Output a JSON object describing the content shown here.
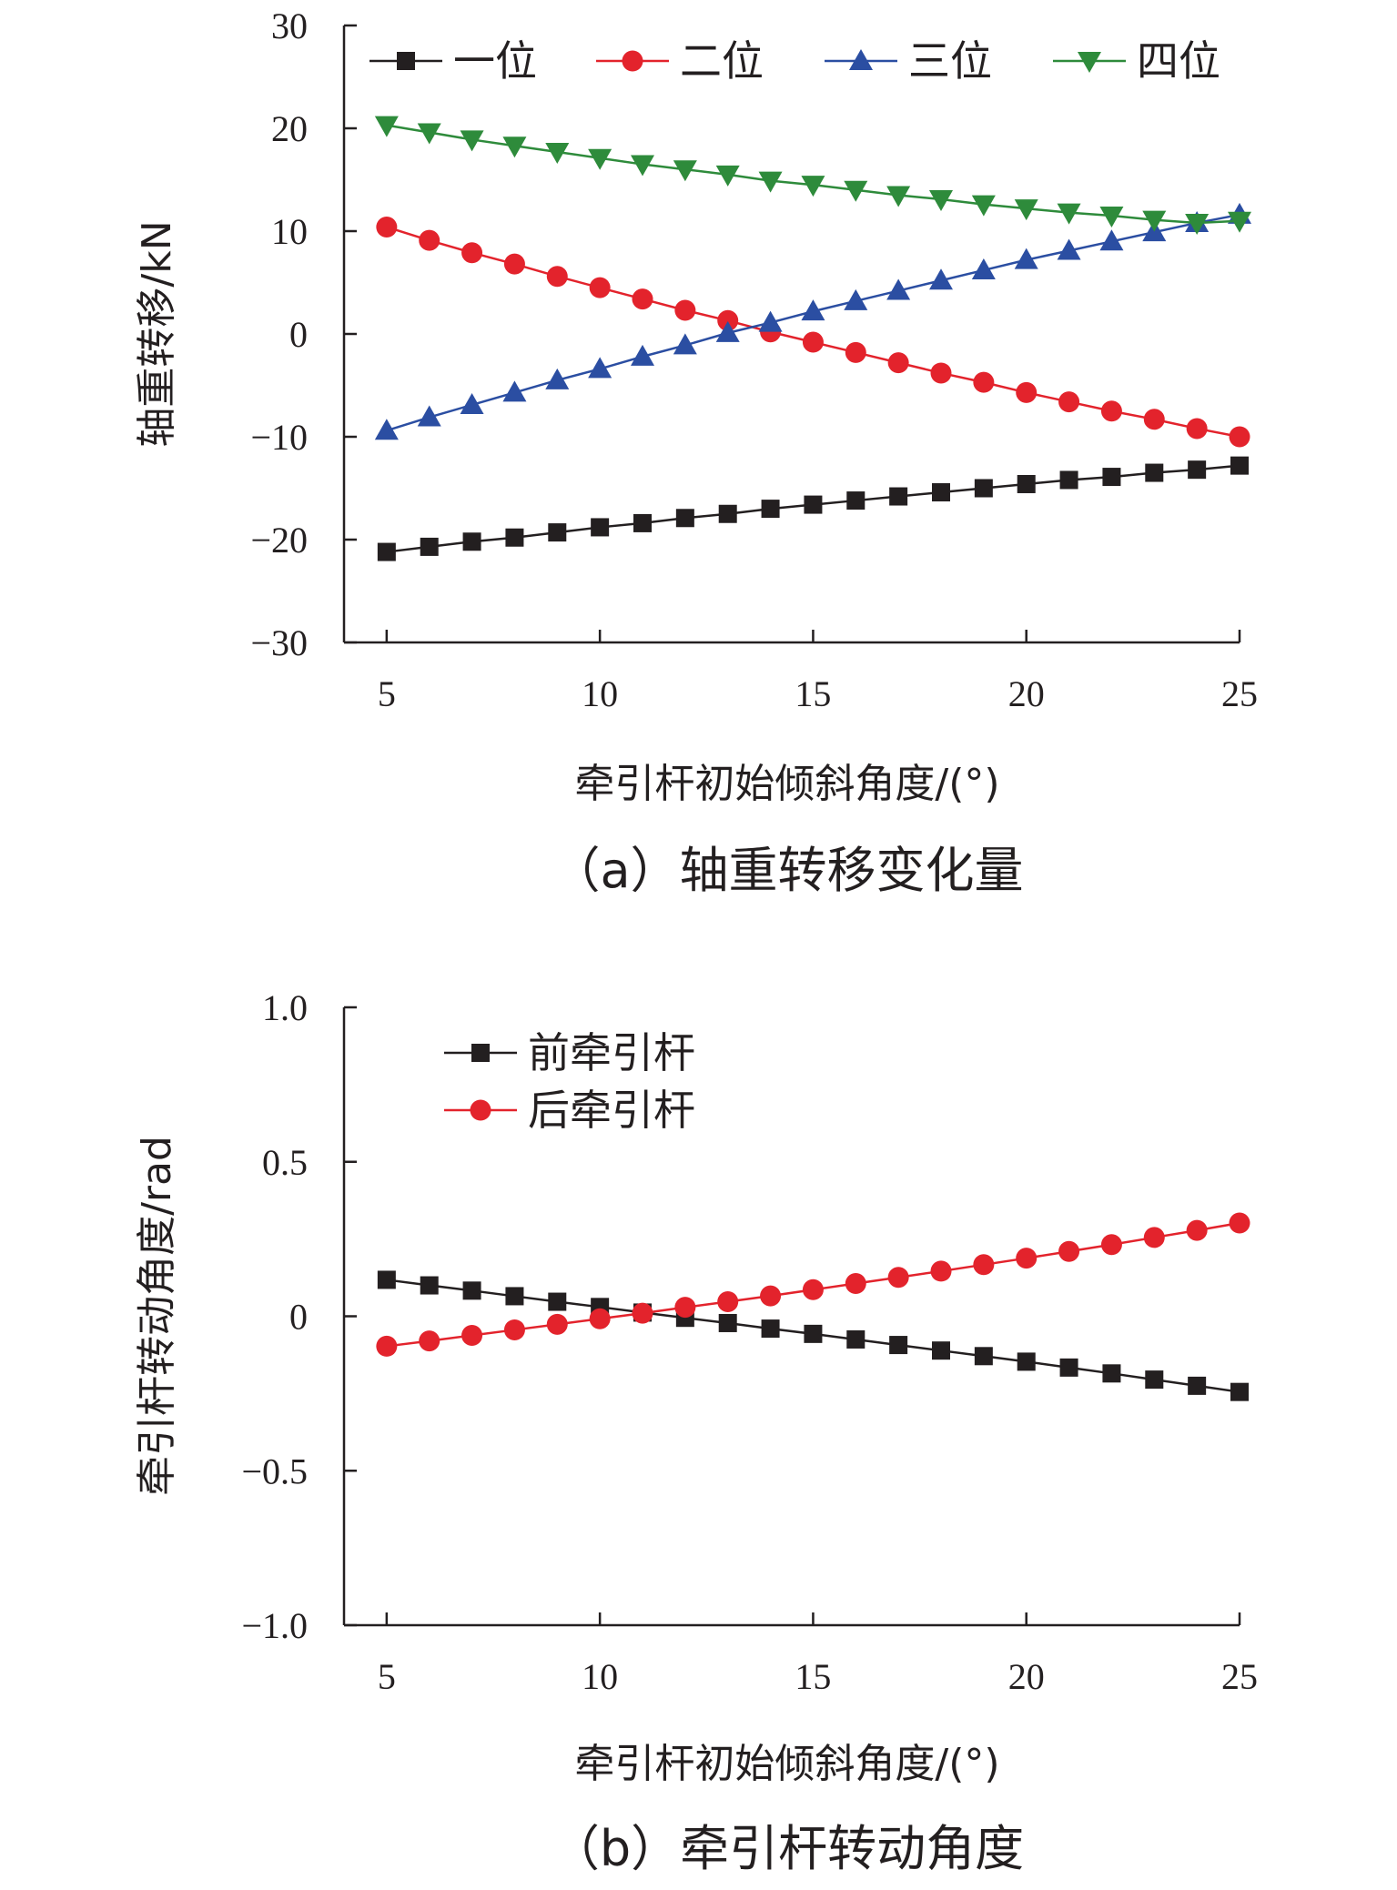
{
  "chart_data": [
    {
      "type": "line",
      "caption": "（a）轴重转移变化量",
      "xlabel": "牵引杆初始倾斜角度/(°)",
      "ylabel": "轴重转移/kN",
      "xlim": [
        4,
        25
      ],
      "ylim": [
        -30,
        30
      ],
      "xticks": [
        5,
        10,
        15,
        20,
        25
      ],
      "xtick_labels": [
        "5",
        "10",
        "15",
        "20",
        "25"
      ],
      "yticks": [
        30,
        20,
        10,
        0,
        -10,
        -20,
        -30
      ],
      "ytick_labels": [
        "30",
        "20",
        "10",
        "0",
        "−10",
        "−20",
        "−30"
      ],
      "legend_position": "top",
      "x": [
        5,
        6,
        7,
        8,
        9,
        10,
        11,
        12,
        13,
        14,
        15,
        16,
        17,
        18,
        19,
        20,
        21,
        22,
        23,
        24,
        25
      ],
      "series": [
        {
          "name": "一位",
          "color": "#231f20",
          "marker": "square",
          "values": [
            -21.2,
            -20.7,
            -20.2,
            -19.8,
            -19.3,
            -18.8,
            -18.4,
            -17.9,
            -17.5,
            -17.0,
            -16.6,
            -16.2,
            -15.8,
            -15.4,
            -15.0,
            -14.6,
            -14.2,
            -13.9,
            -13.5,
            -13.2,
            -12.8
          ]
        },
        {
          "name": "二位",
          "color": "#e3232c",
          "marker": "circle",
          "values": [
            10.4,
            9.1,
            7.9,
            6.8,
            5.6,
            4.5,
            3.4,
            2.3,
            1.3,
            0.2,
            -0.8,
            -1.8,
            -2.8,
            -3.8,
            -4.7,
            -5.7,
            -6.6,
            -7.5,
            -8.3,
            -9.2,
            -10.0
          ]
        },
        {
          "name": "三位",
          "color": "#2b4ea2",
          "marker": "triangle-up",
          "values": [
            -9.4,
            -8.1,
            -6.9,
            -5.7,
            -4.5,
            -3.4,
            -2.2,
            -1.1,
            0.1,
            1.1,
            2.2,
            3.2,
            4.2,
            5.2,
            6.2,
            7.2,
            8.1,
            9.0,
            9.9,
            10.8,
            11.6
          ]
        },
        {
          "name": "四位",
          "color": "#2e8b3b",
          "marker": "triangle-down",
          "values": [
            20.3,
            19.6,
            18.9,
            18.3,
            17.7,
            17.1,
            16.5,
            16.0,
            15.5,
            14.9,
            14.5,
            14.0,
            13.5,
            13.1,
            12.6,
            12.2,
            11.8,
            11.5,
            11.1,
            10.8,
            11.0
          ]
        }
      ]
    },
    {
      "type": "line",
      "caption": "（b）牵引杆转动角度",
      "xlabel": "牵引杆初始倾斜角度/(°)",
      "ylabel": "牵引杆转动角度/rad",
      "xlim": [
        4,
        25
      ],
      "ylim": [
        -1.0,
        1.0
      ],
      "xticks": [
        5,
        10,
        15,
        20,
        25
      ],
      "xtick_labels": [
        "5",
        "10",
        "15",
        "20",
        "25"
      ],
      "yticks": [
        1.0,
        0.5,
        0,
        -0.5,
        -1.0
      ],
      "ytick_labels": [
        "1.0",
        "0.5",
        "0",
        "−0.5",
        "−1.0"
      ],
      "legend_position": "top-left",
      "x": [
        5,
        6,
        7,
        8,
        9,
        10,
        11,
        12,
        13,
        14,
        15,
        16,
        17,
        18,
        19,
        20,
        21,
        22,
        23,
        24,
        25
      ],
      "series": [
        {
          "name": "前牵引杆",
          "color": "#231f20",
          "marker": "square",
          "values": [
            0.118,
            0.1,
            0.083,
            0.065,
            0.047,
            0.03,
            0.012,
            -0.005,
            -0.022,
            -0.04,
            -0.057,
            -0.075,
            -0.093,
            -0.111,
            -0.129,
            -0.147,
            -0.166,
            -0.185,
            -0.205,
            -0.225,
            -0.245
          ]
        },
        {
          "name": "后牵引杆",
          "color": "#e3232c",
          "marker": "circle",
          "values": [
            -0.097,
            -0.08,
            -0.062,
            -0.044,
            -0.026,
            -0.008,
            0.01,
            0.029,
            0.047,
            0.066,
            0.086,
            0.106,
            0.126,
            0.146,
            0.167,
            0.188,
            0.21,
            0.232,
            0.255,
            0.278,
            0.302
          ]
        }
      ]
    }
  ]
}
